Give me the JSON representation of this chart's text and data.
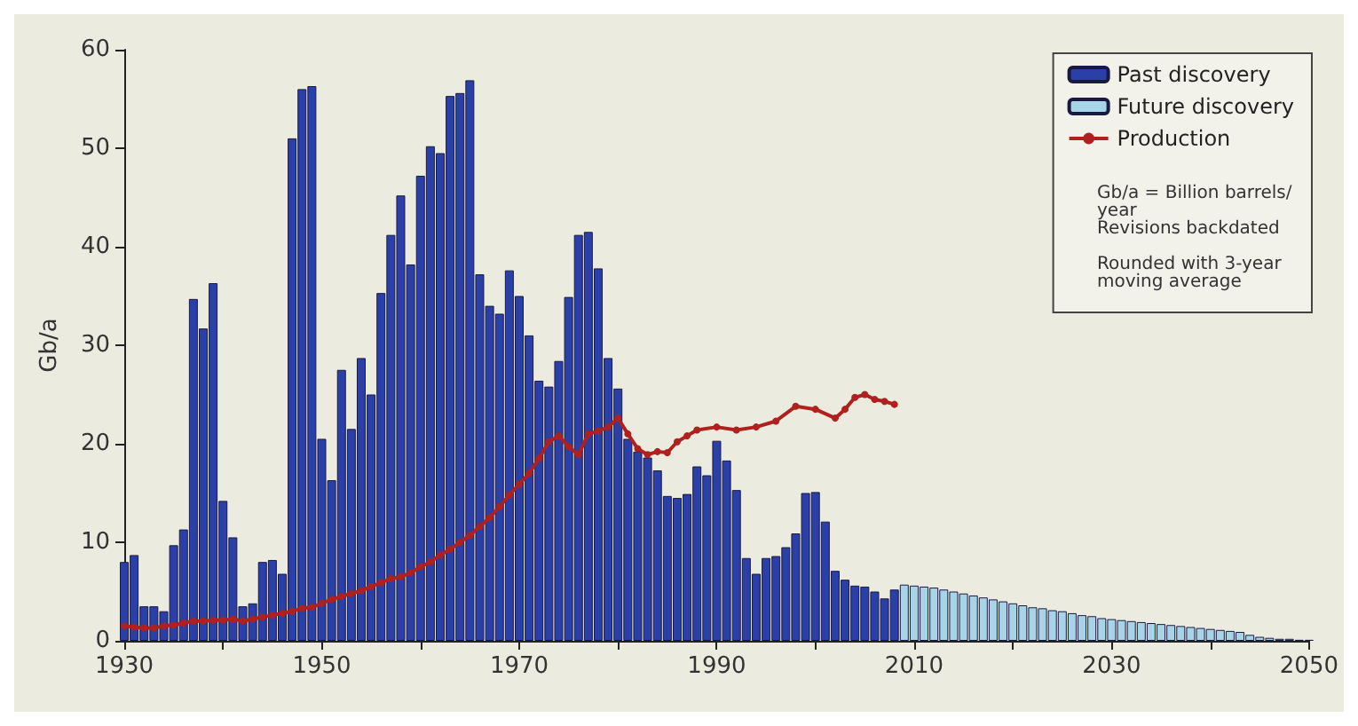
{
  "chart_data": {
    "type": "bar",
    "ylabel": "Gb/a",
    "xlim": [
      1930,
      2050
    ],
    "xticks": [
      1930,
      {
        "value": 1940,
        "label": null
      },
      1950,
      {
        "value": 1960,
        "label": null
      },
      1970,
      {
        "value": 1980,
        "label": null
      },
      1990,
      {
        "value": 2000,
        "label": null
      },
      2010,
      {
        "value": 2020,
        "label": null
      },
      2030,
      {
        "value": 2040,
        "label": null
      },
      2050
    ],
    "ylim": [
      0,
      60
    ],
    "yticks": [
      0,
      10,
      20,
      30,
      40,
      50,
      60
    ],
    "grid": false,
    "legend": "top right",
    "marker": "circle",
    "line_style": "solid",
    "annotations": [
      "Gb/a = Billion barrels/year",
      "Revisions backdated",
      "Rounded with 3-year moving average"
    ],
    "series": [
      {
        "name": "Past discovery",
        "color": "#2b3fa8",
        "x": [
          1930,
          1931,
          1932,
          1933,
          1934,
          1935,
          1936,
          1937,
          1938,
          1939,
          1940,
          1941,
          1942,
          1943,
          1944,
          1945,
          1946,
          1947,
          1948,
          1949,
          1950,
          1951,
          1952,
          1953,
          1954,
          1955,
          1956,
          1957,
          1958,
          1959,
          1960,
          1961,
          1962,
          1963,
          1964,
          1965,
          1966,
          1967,
          1968,
          1969,
          1970,
          1971,
          1972,
          1973,
          1974,
          1975,
          1976,
          1977,
          1978,
          1979,
          1980,
          1981,
          1982,
          1983,
          1984,
          1985,
          1986,
          1987,
          1988,
          1989,
          1990,
          1991,
          1992,
          1993,
          1994,
          1995,
          1996,
          1997,
          1998,
          1999,
          2000,
          2001,
          2002,
          2003,
          2004,
          2005,
          2006,
          2007,
          2008
        ],
        "values": [
          8,
          8.7,
          3.5,
          3.5,
          3,
          9.7,
          11.3,
          34.7,
          31.7,
          36.3,
          14.2,
          10.5,
          3.5,
          3.8,
          8,
          8.2,
          6.8,
          51,
          56,
          56.3,
          20.5,
          16.3,
          27.5,
          21.5,
          28.7,
          25,
          35.3,
          41.2,
          45.2,
          38.2,
          47.2,
          50.2,
          49.5,
          55.3,
          55.6,
          56.9,
          37.2,
          34,
          33.2,
          37.6,
          35,
          31,
          26.4,
          25.8,
          28.4,
          34.9,
          41.2,
          41.5,
          37.8,
          28.7,
          25.6,
          20.5,
          19.2,
          18.6,
          17.3,
          14.7,
          14.5,
          14.9,
          17.7,
          16.8,
          20.3,
          18.3,
          15.3,
          8.4,
          6.8,
          8.4,
          8.6,
          9.5,
          10.9,
          15,
          15.1,
          12.1,
          7.1,
          6.2,
          5.6,
          5.5,
          5,
          4.3,
          5.2
        ]
      },
      {
        "name": "Future discovery",
        "type": "bar",
        "color": "#a8d4e8",
        "x": [
          2009,
          2010,
          2011,
          2012,
          2013,
          2014,
          2015,
          2016,
          2017,
          2018,
          2019,
          2020,
          2021,
          2022,
          2023,
          2024,
          2025,
          2026,
          2027,
          2028,
          2029,
          2030,
          2031,
          2032,
          2033,
          2034,
          2035,
          2036,
          2037,
          2038,
          2039,
          2040,
          2041,
          2042,
          2043,
          2044,
          2045,
          2046,
          2047,
          2048,
          2049,
          2050
        ],
        "values": [
          5.7,
          5.6,
          5.5,
          5.4,
          5.2,
          5,
          4.8,
          4.6,
          4.4,
          4.2,
          4,
          3.8,
          3.6,
          3.4,
          3.3,
          3.1,
          3,
          2.8,
          2.6,
          2.5,
          2.3,
          2.2,
          2.1,
          2,
          1.9,
          1.8,
          1.7,
          1.6,
          1.5,
          1.4,
          1.3,
          1.2,
          1.1,
          1,
          0.9,
          0.6,
          0.4,
          0.3,
          0.2,
          0.2,
          0.1,
          0.1
        ]
      },
      {
        "name": "Production",
        "type": "line",
        "color": "#b0201f",
        "x": [
          1930,
          1931,
          1932,
          1933,
          1934,
          1935,
          1936,
          1937,
          1938,
          1939,
          1940,
          1941,
          1942,
          1943,
          1944,
          1945,
          1946,
          1947,
          1948,
          1949,
          1950,
          1951,
          1952,
          1953,
          1954,
          1955,
          1956,
          1957,
          1958,
          1959,
          1960,
          1961,
          1962,
          1963,
          1964,
          1965,
          1966,
          1967,
          1968,
          1969,
          1970,
          1971,
          1972,
          1973,
          1974,
          1975,
          1976,
          1977,
          1978,
          1979,
          1980,
          1981,
          1982,
          1983,
          1984,
          1985,
          1986,
          1987,
          1988,
          1990,
          1992,
          1994,
          1996,
          1998,
          2000,
          2002,
          2003,
          2004,
          2005,
          2006,
          2007,
          2008
        ],
        "values": [
          1.5,
          1.4,
          1.3,
          1.3,
          1.5,
          1.6,
          1.8,
          2,
          2,
          2.1,
          2.1,
          2.2,
          2,
          2.2,
          2.4,
          2.6,
          2.8,
          3,
          3.3,
          3.4,
          3.8,
          4.2,
          4.5,
          4.8,
          5.1,
          5.5,
          5.9,
          6.3,
          6.5,
          6.9,
          7.5,
          8,
          8.7,
          9.3,
          10,
          10.7,
          11.6,
          12.5,
          13.6,
          14.8,
          15.9,
          17,
          18.5,
          20.2,
          20.8,
          19.7,
          18.9,
          21,
          21.3,
          21.7,
          22.6,
          21,
          19.5,
          18.9,
          19.2,
          19.1,
          20.2,
          20.8,
          21.4,
          21.7,
          21.4,
          21.7,
          22.3,
          23.8,
          23.5,
          22.6,
          23.5,
          24.7,
          25,
          24.5,
          24.3,
          24
        ]
      }
    ]
  }
}
